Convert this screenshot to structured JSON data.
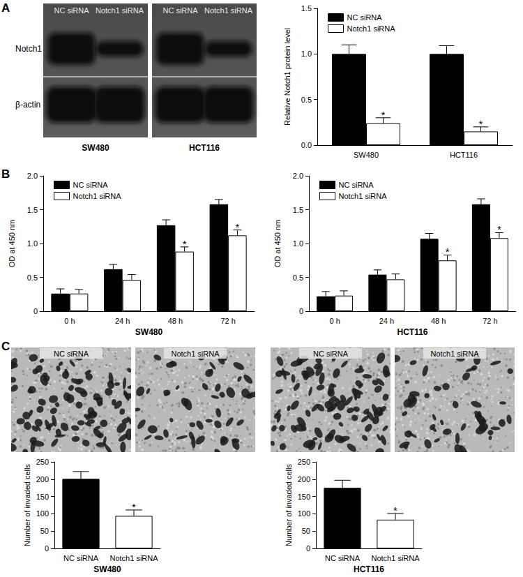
{
  "panels": [
    "A",
    "B",
    "C"
  ],
  "blot": {
    "rows": [
      "Notch1",
      "β-actin"
    ],
    "groups": [
      {
        "label": "SW480",
        "lanes": [
          "NC siRNA",
          "Notch1 siRNA"
        ]
      },
      {
        "label": "HCT116",
        "lanes": [
          "NC siRNA",
          "Notch1 siRNA"
        ]
      }
    ]
  },
  "micrographs": {
    "groups": [
      {
        "lanes": [
          "NC siRNA",
          "Notch1 siRNA"
        ]
      },
      {
        "lanes": [
          "NC siRNA",
          "Notch1 siRNA"
        ]
      }
    ]
  },
  "chart_data": [
    {
      "type": "bar",
      "categories": [
        "SW480",
        "HCT116"
      ],
      "series": [
        {
          "name": "NC siRNA",
          "color": "#000000",
          "values": [
            1.0,
            1.0
          ],
          "errors": [
            0.1,
            0.09
          ]
        },
        {
          "name": "Notch1 siRNA",
          "color": "#ffffff",
          "values": [
            0.24,
            0.15
          ],
          "errors": [
            0.06,
            0.05
          ]
        }
      ],
      "annotations": [
        {
          "category": "SW480",
          "series": "Notch1 siRNA",
          "text": "*"
        },
        {
          "category": "HCT116",
          "series": "Notch1 siRNA",
          "text": "*"
        }
      ],
      "y_label": "Relative Notch1 protein level",
      "ylim": [
        0,
        1.5
      ],
      "yticks": [
        {
          "value": 0,
          "label": "0.0"
        },
        0.5,
        {
          "value": 1,
          "label": "1.0"
        },
        1.5
      ],
      "legend": "upper left",
      "grid": false
    },
    {
      "type": "bar",
      "categories": [
        "0 h",
        "24 h",
        "48 h",
        "72 h"
      ],
      "series": [
        {
          "name": "NC siRNA",
          "color": "#000000",
          "values": [
            0.26,
            0.62,
            1.27,
            1.58
          ],
          "errors": [
            0.07,
            0.07,
            0.08,
            0.07
          ]
        },
        {
          "name": "Notch1 siRNA",
          "color": "#ffffff",
          "values": [
            0.26,
            0.46,
            0.88,
            1.12
          ],
          "errors": [
            0.06,
            0.08,
            0.07,
            0.08
          ]
        }
      ],
      "annotations": [
        {
          "category": "48 h",
          "series": "Notch1 siRNA",
          "text": "*"
        },
        {
          "category": "72 h",
          "series": "Notch1 siRNA",
          "text": "*"
        }
      ],
      "x_label": "SW480",
      "y_label": "OD at 450 nm",
      "ylim": [
        0,
        2.0
      ],
      "yticks": [
        0,
        0.5,
        {
          "value": 1,
          "label": "1.0"
        },
        1.5,
        {
          "value": 2,
          "label": "2.0"
        }
      ],
      "legend": "upper left",
      "grid": false
    },
    {
      "type": "bar",
      "categories": [
        "0 h",
        "24 h",
        "48 h",
        "72 h"
      ],
      "series": [
        {
          "name": "NC siRNA",
          "color": "#000000",
          "values": [
            0.22,
            0.54,
            1.07,
            1.58
          ],
          "errors": [
            0.07,
            0.07,
            0.08,
            0.08
          ]
        },
        {
          "name": "Notch1 siRNA",
          "color": "#ffffff",
          "values": [
            0.23,
            0.47,
            0.75,
            1.08
          ],
          "errors": [
            0.07,
            0.08,
            0.08,
            0.08
          ]
        }
      ],
      "annotations": [
        {
          "category": "48 h",
          "series": "Notch1 siRNA",
          "text": "*"
        },
        {
          "category": "72 h",
          "series": "Notch1 siRNA",
          "text": "*"
        }
      ],
      "x_label": "HCT116",
      "y_label": "OD at 450 nm",
      "ylim": [
        0,
        2.0
      ],
      "yticks": [
        0,
        0.5,
        {
          "value": 1,
          "label": "1.0"
        },
        1.5,
        {
          "value": 2,
          "label": "2.0"
        }
      ],
      "legend": "upper left",
      "grid": false
    },
    {
      "type": "bar",
      "categories": [
        "NC siRNA",
        "Notch1 siRNA"
      ],
      "values": [
        201,
        94
      ],
      "errors": [
        21,
        17
      ],
      "colors": [
        "#000000",
        "#ffffff"
      ],
      "annotations": [
        {
          "category": "Notch1 siRNA",
          "text": "*"
        }
      ],
      "x_label": "SW480",
      "y_label": "Number of invaded cells",
      "ylim": [
        0,
        250
      ],
      "yticks": [
        0,
        50,
        100,
        150,
        200,
        250
      ],
      "grid": false
    },
    {
      "type": "bar",
      "categories": [
        "NC siRNA",
        "Notch1 siRNA"
      ],
      "values": [
        175,
        83
      ],
      "errors": [
        22,
        18
      ],
      "colors": [
        "#000000",
        "#ffffff"
      ],
      "annotations": [
        {
          "category": "Notch1 siRNA",
          "text": "*"
        }
      ],
      "x_label": "HCT116",
      "y_label": "Number of invaded cells",
      "ylim": [
        0,
        250
      ],
      "yticks": [
        0,
        50,
        100,
        150,
        200,
        250
      ],
      "grid": false
    }
  ]
}
